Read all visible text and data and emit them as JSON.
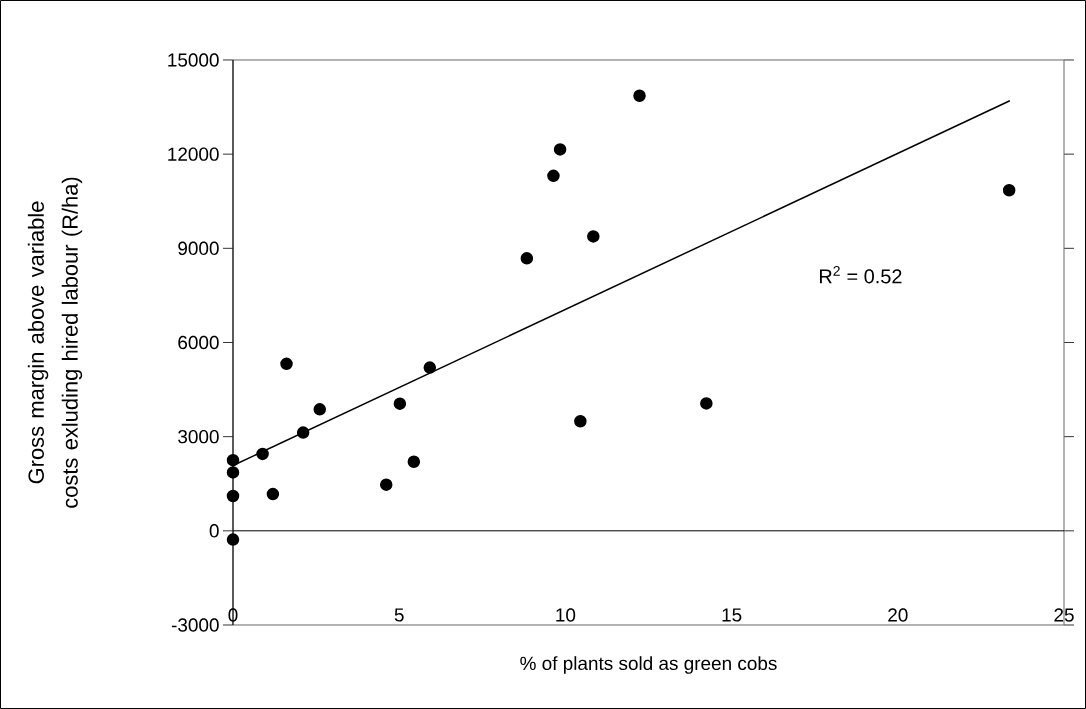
{
  "chart_data": {
    "type": "scatter",
    "xlabel": "% of plants sold as green cobs",
    "ylabel": "Gross margin above variable costs exluding hired labour (R/ha)",
    "xlim": [
      0,
      25
    ],
    "ylim": [
      -3000,
      15000
    ],
    "xticks": [
      0,
      5,
      10,
      15,
      20,
      25
    ],
    "yticks": [
      -3000,
      0,
      3000,
      6000,
      9000,
      12000,
      15000
    ],
    "annotations": [
      "R$^{2}$ = 0.52"
    ],
    "series": [
      {
        "color": "#000000",
        "marker": "circle",
        "x": [
          0,
          0,
          0,
          0,
          0.89,
          1.2,
          1.61,
          2.11,
          2.61,
          4.61,
          5.02,
          5.44,
          5.92,
          8.84,
          9.64,
          9.84,
          10.84,
          10.45,
          12.23,
          14.24,
          23.35
        ],
        "values": [
          2250,
          1860,
          1110,
          -280,
          2450,
          1170,
          5320,
          3130,
          3870,
          1470,
          4050,
          2200,
          5200,
          8680,
          11310,
          12150,
          9380,
          3490,
          13860,
          4060,
          10850
        ]
      },
      {
        "type": "line",
        "color": "#000000",
        "marker": "none",
        "x": [
          0,
          23.37
        ],
        "values": [
          2080,
          13700
        ]
      }
    ]
  }
}
